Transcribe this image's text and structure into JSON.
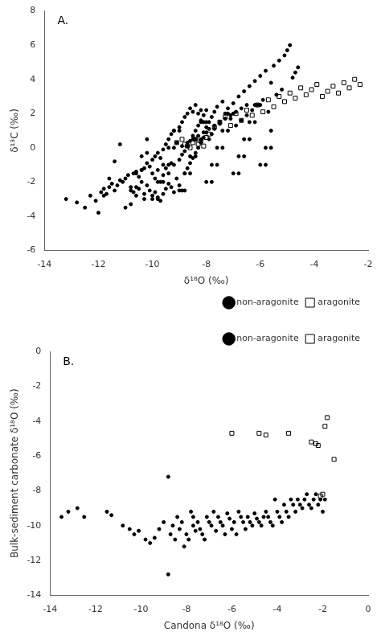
{
  "chart_data": [
    {
      "type": "scatter",
      "x_label": "δ¹⁸O (‰)",
      "y_label": "δ¹³C (‰)",
      "annotations": [
        "A."
      ],
      "xlim": [
        -14,
        -2
      ],
      "ylim": [
        -6,
        8
      ],
      "xticks": [
        -14,
        -12,
        -10,
        -8,
        -6,
        -4,
        -2
      ],
      "yticks": [
        -6,
        -4,
        -2,
        0,
        2,
        4,
        6,
        8
      ],
      "grid": false,
      "legend": "lower right",
      "series": [
        {
          "name": "non-aragonite",
          "color": "black",
          "marker": "circle",
          "x": [
            -13.2,
            -12.8,
            -12.5,
            -12.3,
            -12.1,
            -11.9,
            -11.8,
            -11.7,
            -11.6,
            -11.5,
            -11.4,
            -11.3,
            -11.2,
            -11.1,
            -11.0,
            -10.9,
            -10.8,
            -10.7,
            -10.7,
            -10.6,
            -10.6,
            -10.5,
            -10.5,
            -10.4,
            -10.4,
            -10.3,
            -10.3,
            -10.3,
            -10.2,
            -10.2,
            -10.1,
            -10.1,
            -10.0,
            -10.0,
            -10.0,
            -9.9,
            -9.9,
            -9.9,
            -9.8,
            -9.8,
            -9.8,
            -9.7,
            -9.7,
            -9.7,
            -9.6,
            -9.6,
            -9.6,
            -9.5,
            -9.5,
            -9.5,
            -9.4,
            -9.4,
            -9.4,
            -9.3,
            -9.3,
            -9.3,
            -9.2,
            -9.2,
            -9.2,
            -9.1,
            -9.1,
            -9.0,
            -9.0,
            -9.0,
            -8.9,
            -8.9,
            -8.9,
            -8.8,
            -8.8,
            -8.8,
            -8.7,
            -8.7,
            -8.7,
            -8.6,
            -8.6,
            -8.6,
            -8.5,
            -8.5,
            -8.5,
            -8.4,
            -8.4,
            -8.4,
            -8.3,
            -8.3,
            -8.3,
            -8.2,
            -8.2,
            -8.2,
            -8.1,
            -8.1,
            -8.1,
            -8.0,
            -8.0,
            -8.0,
            -7.9,
            -7.9,
            -7.8,
            -7.8,
            -7.7,
            -7.7,
            -7.6,
            -7.5,
            -7.4,
            -7.3,
            -7.2,
            -7.1,
            -7.0,
            -6.9,
            -6.8,
            -6.7,
            -6.6,
            -6.5,
            -6.4,
            -6.3,
            -6.2,
            -6.1,
            -6.0,
            -5.9,
            -5.8,
            -5.7,
            -5.6,
            -5.5,
            -5.4,
            -5.3,
            -5.2,
            -5.1,
            -5.0,
            -4.9,
            -4.8,
            -4.7,
            -4.6,
            -11.0,
            -10.8,
            -10.6,
            -10.4,
            -10.2,
            -10.0,
            -9.8,
            -9.6,
            -9.4,
            -9.2,
            -9.0,
            -8.8,
            -8.6,
            -8.4,
            -8.2,
            -8.0,
            -7.8,
            -7.6,
            -7.4,
            -7.2,
            -7.0,
            -6.8,
            -6.6,
            -6.4,
            -6.2,
            -6.0,
            -5.8,
            -5.6,
            -12.0,
            -11.8,
            -11.6,
            -11.4,
            -11.2,
            -10.8,
            -10.6,
            -10.4,
            -10.2,
            -9.8,
            -9.6,
            -9.4,
            -9.2,
            -9.0,
            -8.8,
            -8.6,
            -8.4,
            -8.2,
            -8.0,
            -7.8,
            -7.6,
            -7.4,
            -7.2,
            -7.0,
            -6.8,
            -6.6,
            -6.4,
            -6.2,
            -6.0,
            -5.8,
            -5.6,
            -8.9,
            -8.7,
            -8.5,
            -8.3,
            -8.1,
            -7.9,
            -7.7,
            -7.5,
            -7.3,
            -7.1,
            -6.9,
            -6.7,
            -6.5
          ],
          "values": [
            -3.0,
            -3.2,
            -3.5,
            -2.8,
            -3.1,
            -2.6,
            -2.4,
            -2.7,
            -2.3,
            -2.1,
            -2.5,
            -2.2,
            -1.9,
            -2.0,
            -1.8,
            -1.6,
            -2.3,
            -1.5,
            -2.6,
            -2.8,
            -1.4,
            -2.4,
            -1.7,
            -1.3,
            -2.0,
            -2.7,
            -1.2,
            -3.0,
            -2.2,
            -0.9,
            -2.5,
            -1.1,
            -2.8,
            -1.5,
            -0.7,
            -2.6,
            -1.8,
            -0.5,
            -2.9,
            -1.3,
            -0.3,
            -3.1,
            -2.0,
            -0.6,
            -2.7,
            -1.6,
            -0.1,
            -2.4,
            -1.2,
            0.2,
            -2.1,
            -1.5,
            0.5,
            -2.3,
            -0.9,
            0.8,
            -2.6,
            -1.0,
            1.0,
            -1.8,
            0.3,
            -2.2,
            -0.7,
            1.2,
            -2.5,
            -0.4,
            1.5,
            -1.5,
            -0.2,
            1.8,
            -1.2,
            0.1,
            2.0,
            -0.9,
            0.4,
            2.3,
            -0.6,
            0.7,
            2.1,
            -0.3,
            1.0,
            2.5,
            0.0,
            1.3,
            2.0,
            0.3,
            1.6,
            2.2,
            0.6,
            1.9,
            1.5,
            0.9,
            2.2,
            1.2,
            1.5,
            0.5,
            1.8,
            0.8,
            2.1,
            1.1,
            2.4,
            1.4,
            2.7,
            2.0,
            2.3,
            1.7,
            2.6,
            1.3,
            3.0,
            1.6,
            3.3,
            1.9,
            3.6,
            2.2,
            3.9,
            2.5,
            4.2,
            2.8,
            4.5,
            2.1,
            3.8,
            4.8,
            3.1,
            5.1,
            3.4,
            5.4,
            5.7,
            6.0,
            4.1,
            4.4,
            4.7,
            -3.5,
            -2.5,
            -1.5,
            -0.5,
            0.5,
            -3.0,
            -2.0,
            -1.0,
            0.0,
            1.0,
            -2.5,
            -1.5,
            -0.5,
            0.5,
            1.5,
            -2.0,
            -1.0,
            0.0,
            1.0,
            2.0,
            -1.5,
            -0.5,
            0.5,
            1.5,
            2.5,
            -1.0,
            0.0,
            1.0,
            -3.8,
            -2.8,
            -1.8,
            -0.8,
            0.2,
            -3.3,
            -2.3,
            -1.3,
            -0.3,
            -3.0,
            -2.0,
            -1.0,
            0.0,
            1.0,
            -2.5,
            -1.5,
            -0.5,
            0.5,
            1.5,
            -2.0,
            -1.0,
            0.0,
            1.0,
            2.0,
            -1.5,
            -0.5,
            0.5,
            1.5,
            2.5,
            -1.0,
            0.0,
            0.1,
            0.3,
            0.5,
            0.7,
            0.9,
            1.1,
            1.3,
            1.5,
            1.7,
            1.9,
            2.1,
            2.3,
            2.5
          ]
        },
        {
          "name": "aragonite",
          "color": "black",
          "marker": "square",
          "x": [
            -9.1,
            -8.9,
            -8.8,
            -8.7,
            -8.6,
            -8.5,
            -8.4,
            -8.3,
            -8.2,
            -8.1,
            -8.0,
            -7.9,
            -7.7,
            -7.5,
            -7.3,
            -7.1,
            -6.9,
            -6.7,
            -6.5,
            -6.3,
            -6.1,
            -5.9,
            -5.7,
            -5.5,
            -5.3,
            -5.1,
            -4.9,
            -4.7,
            -4.5,
            -4.3,
            -4.1,
            -3.9,
            -3.7,
            -3.5,
            -3.3,
            -3.1,
            -2.9,
            -2.7,
            -2.5,
            -2.3
          ],
          "values": [
            0.3,
            0.5,
            0.2,
            0.1,
            0.0,
            0.3,
            0.5,
            0.2,
            0.4,
            0.1,
            0.6,
            0.8,
            1.2,
            1.5,
            1.8,
            1.3,
            2.0,
            1.6,
            2.2,
            1.9,
            2.5,
            2.1,
            2.8,
            2.4,
            3.0,
            2.7,
            3.2,
            2.9,
            3.5,
            3.1,
            3.4,
            3.7,
            3.0,
            3.3,
            3.6,
            3.2,
            3.8,
            3.5,
            4.0,
            3.7
          ]
        }
      ]
    },
    {
      "type": "scatter",
      "x_label": "Candona δ¹⁸O (‰)",
      "y_label": "Bulk-sediment carbonate δ¹⁸O (‰)",
      "annotations": [
        "B."
      ],
      "xlim": [
        -14,
        0
      ],
      "ylim": [
        -14,
        0
      ],
      "xticks": [
        -14,
        -12,
        -10,
        -8,
        -6,
        -4,
        -2,
        0
      ],
      "yticks": [
        -14,
        -12,
        -10,
        -8,
        -6,
        -4,
        -2,
        0
      ],
      "grid": false,
      "legend": "upper right",
      "series": [
        {
          "name": "non-aragonite",
          "color": "black",
          "marker": "circle",
          "x": [
            -13.5,
            -13.2,
            -12.8,
            -12.5,
            -11.5,
            -11.3,
            -10.8,
            -10.5,
            -10.3,
            -10.1,
            -9.8,
            -9.6,
            -9.4,
            -9.2,
            -9.0,
            -8.8,
            -8.8,
            -8.7,
            -8.6,
            -8.5,
            -8.4,
            -8.3,
            -8.2,
            -8.1,
            -8.0,
            -7.9,
            -7.8,
            -7.7,
            -7.7,
            -7.6,
            -7.5,
            -7.4,
            -7.3,
            -7.2,
            -7.1,
            -7.0,
            -6.9,
            -6.8,
            -6.7,
            -6.6,
            -6.5,
            -6.4,
            -6.3,
            -6.2,
            -6.1,
            -6.0,
            -5.9,
            -5.8,
            -5.7,
            -5.6,
            -5.5,
            -5.4,
            -5.3,
            -5.2,
            -5.1,
            -5.0,
            -4.9,
            -4.8,
            -4.7,
            -4.6,
            -4.5,
            -4.4,
            -4.3,
            -4.2,
            -4.1,
            -4.0,
            -3.9,
            -3.8,
            -3.7,
            -3.6,
            -3.5,
            -3.4,
            -3.3,
            -3.2,
            -3.1,
            -3.0,
            -2.9,
            -2.8,
            -2.7,
            -2.6,
            -2.5,
            -2.4,
            -2.3,
            -2.2,
            -2.1,
            -2.0,
            -1.9
          ],
          "values": [
            -9.5,
            -9.2,
            -9.0,
            -9.5,
            -9.2,
            -9.4,
            -10.0,
            -10.2,
            -10.5,
            -10.3,
            -10.8,
            -11.0,
            -10.7,
            -10.2,
            -9.8,
            -12.8,
            -7.2,
            -10.5,
            -10.0,
            -10.8,
            -9.5,
            -10.2,
            -9.8,
            -11.2,
            -10.5,
            -10.8,
            -9.2,
            -9.5,
            -10.0,
            -10.3,
            -9.8,
            -10.2,
            -10.5,
            -10.8,
            -9.5,
            -9.8,
            -10.0,
            -9.2,
            -10.3,
            -9.5,
            -9.8,
            -10.0,
            -10.5,
            -9.3,
            -9.6,
            -10.2,
            -9.8,
            -10.5,
            -9.2,
            -9.5,
            -9.8,
            -10.2,
            -9.5,
            -9.8,
            -10.0,
            -9.3,
            -9.6,
            -9.8,
            -10.0,
            -9.5,
            -9.2,
            -9.5,
            -9.8,
            -10.0,
            -8.5,
            -9.2,
            -9.5,
            -9.8,
            -8.8,
            -9.2,
            -9.5,
            -8.5,
            -8.8,
            -9.2,
            -8.5,
            -8.8,
            -9.0,
            -8.5,
            -8.2,
            -8.8,
            -9.0,
            -8.5,
            -8.2,
            -8.8,
            -8.5,
            -9.2,
            -8.5
          ]
        },
        {
          "name": "aragonite",
          "color": "black",
          "marker": "square",
          "x": [
            -6.0,
            -4.8,
            -4.5,
            -3.5,
            -2.5,
            -2.3,
            -2.2,
            -2.1,
            -2.0,
            -1.9,
            -1.8,
            -1.5
          ],
          "values": [
            -4.7,
            -4.7,
            -4.8,
            -4.7,
            -5.2,
            -5.3,
            -5.4,
            -8.3,
            -8.2,
            -4.3,
            -3.8,
            -6.2
          ]
        }
      ]
    }
  ]
}
